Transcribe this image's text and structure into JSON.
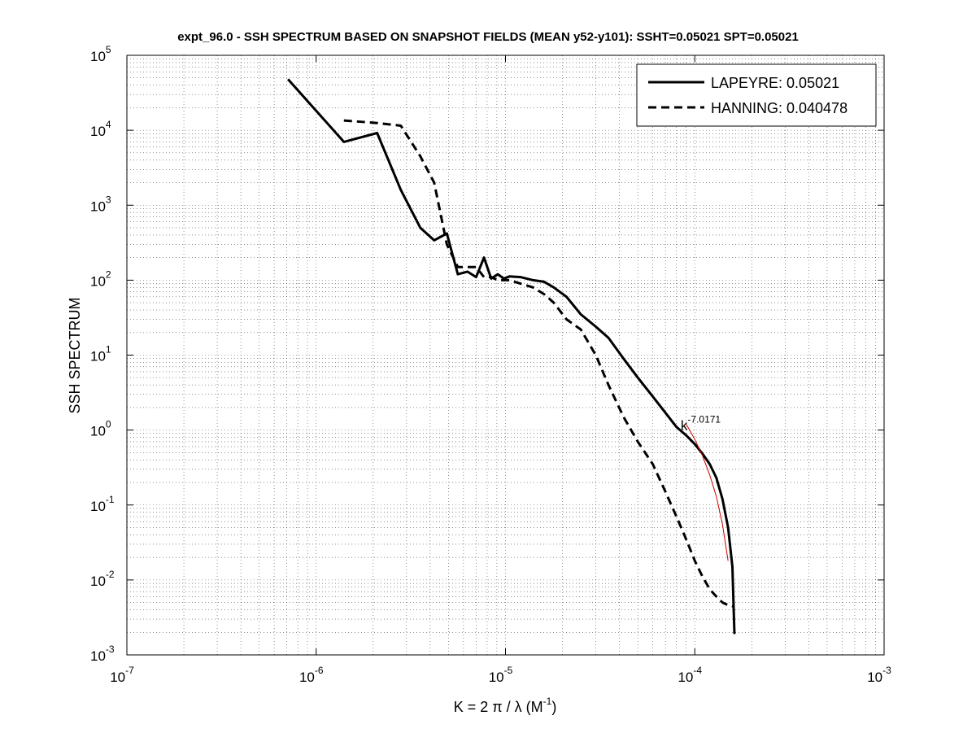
{
  "chart_data": {
    "type": "line",
    "title": "expt_96.0 - SSH SPECTRUM BASED ON SNAPSHOT FIELDS (MEAN y52-y101): SSHT=0.05021 SPT=0.05021",
    "xlabel_main": "K = 2 π / λ  (M",
    "xlabel_exp": "-1",
    "xlabel_close": ")",
    "ylabel": "SSH SPECTRUM",
    "xscale": "log",
    "yscale": "log",
    "xlim": [
      1e-07,
      0.001
    ],
    "ylim": [
      0.001,
      100000.0
    ],
    "grid": true,
    "legend_position": "top-right",
    "x_ticks": [
      {
        "v": 1e-07,
        "base": "10",
        "exp": "-7"
      },
      {
        "v": 1e-06,
        "base": "10",
        "exp": "-6"
      },
      {
        "v": 1e-05,
        "base": "10",
        "exp": "-5"
      },
      {
        "v": 0.0001,
        "base": "10",
        "exp": "-4"
      },
      {
        "v": 0.001,
        "base": "10",
        "exp": "-3"
      }
    ],
    "y_ticks": [
      {
        "v": 0.001,
        "base": "10",
        "exp": "-3"
      },
      {
        "v": 0.01,
        "base": "10",
        "exp": "-2"
      },
      {
        "v": 0.1,
        "base": "10",
        "exp": "-1"
      },
      {
        "v": 1.0,
        "base": "10",
        "exp": "0"
      },
      {
        "v": 10.0,
        "base": "10",
        "exp": "1"
      },
      {
        "v": 100.0,
        "base": "10",
        "exp": "2"
      },
      {
        "v": 1000.0,
        "base": "10",
        "exp": "3"
      },
      {
        "v": 10000.0,
        "base": "10",
        "exp": "4"
      },
      {
        "v": 100000.0,
        "base": "10",
        "exp": "5"
      }
    ],
    "annotation": {
      "base": "k",
      "exp": "-7.0171",
      "x": 9.3e-05,
      "y": 0.95
    },
    "series": [
      {
        "name": "LAPEYRE: 0.05021",
        "style": "solid",
        "color": "#000000",
        "x": [
          7.1e-07,
          1.4e-06,
          2.1e-06,
          2.8e-06,
          3.55e-06,
          4.2e-06,
          4.9e-06,
          5.6e-06,
          6.3e-06,
          7e-06,
          7.7e-06,
          8.4e-06,
          9.1e-06,
          9.8e-06,
          1.05e-05,
          1.2e-05,
          1.4e-05,
          1.6e-05,
          1.8e-05,
          2.1e-05,
          2.5e-05,
          3e-05,
          3.5e-05,
          4.2e-05,
          5e-05,
          6e-05,
          7e-05,
          8e-05,
          9e-05,
          0.0001,
          0.00011,
          0.00012,
          0.00013,
          0.00014,
          0.00015,
          0.000158,
          0.000162
        ],
        "y": [
          48000,
          7000,
          9200,
          1600,
          500,
          340,
          420,
          120,
          130,
          110,
          200,
          105,
          120,
          105,
          112,
          110,
          100,
          95,
          80,
          60,
          35,
          24,
          17,
          9,
          5,
          2.8,
          1.7,
          1.1,
          0.85,
          0.65,
          0.48,
          0.35,
          0.23,
          0.12,
          0.05,
          0.015,
          0.0019
        ]
      },
      {
        "name": "HANNING: 0.040478",
        "style": "dashed",
        "color": "#000000",
        "x": [
          1.4e-06,
          2.1e-06,
          2.8e-06,
          3.55e-06,
          4.2e-06,
          4.9e-06,
          5.6e-06,
          6.3e-06,
          7e-06,
          7.7e-06,
          8.4e-06,
          9.1e-06,
          9.8e-06,
          1.05e-05,
          1.2e-05,
          1.4e-05,
          1.6e-05,
          1.8e-05,
          2.1e-05,
          2.5e-05,
          3e-05,
          3.5e-05,
          4.2e-05,
          5e-05,
          6e-05,
          7e-05,
          8e-05,
          9e-05,
          0.0001,
          0.00011,
          0.00012,
          0.00013,
          0.00014,
          0.00015,
          0.000162
        ],
        "y": [
          13500,
          12500,
          11500,
          4500,
          2000,
          300,
          150,
          150,
          150,
          110,
          110,
          100,
          100,
          100,
          90,
          80,
          65,
          50,
          30,
          22,
          10,
          4,
          1.5,
          0.7,
          0.35,
          0.15,
          0.07,
          0.035,
          0.018,
          0.011,
          0.0075,
          0.006,
          0.005,
          0.0046,
          0.0044
        ]
      },
      {
        "name": "",
        "style": "fit",
        "color": "#cc0000",
        "x": [
          9e-05,
          0.0001,
          0.00011,
          0.00012,
          0.00013,
          0.00014,
          0.00015
        ],
        "y": [
          1.2,
          0.75,
          0.45,
          0.25,
          0.13,
          0.055,
          0.018
        ]
      }
    ]
  }
}
